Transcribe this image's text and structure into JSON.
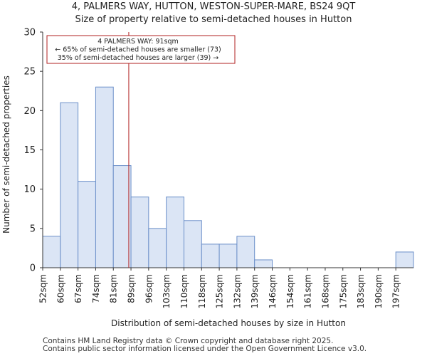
{
  "chart_data": {
    "type": "bar",
    "title": "4, PALMERS WAY, HUTTON, WESTON-SUPER-MARE, BS24 9QT",
    "subtitle": "Size of property relative to semi-detached houses in Hutton",
    "xlabel": "Distribution of semi-detached houses by size in Hutton",
    "ylabel": "Number of semi-detached properties",
    "categories": [
      "52sqm",
      "60sqm",
      "67sqm",
      "74sqm",
      "81sqm",
      "89sqm",
      "96sqm",
      "103sqm",
      "110sqm",
      "118sqm",
      "125sqm",
      "132sqm",
      "139sqm",
      "146sqm",
      "154sqm",
      "161sqm",
      "168sqm",
      "175sqm",
      "183sqm",
      "190sqm",
      "197sqm"
    ],
    "values": [
      4,
      21,
      11,
      23,
      13,
      9,
      5,
      9,
      6,
      3,
      3,
      4,
      1,
      0,
      0,
      0,
      0,
      0,
      0,
      0,
      2
    ],
    "ylim": [
      0,
      30
    ],
    "yticks": [
      0,
      5,
      10,
      15,
      20,
      25,
      30
    ],
    "grid": false,
    "bar_color": "#dbe5f5",
    "bar_edge_color": "#6b8fc9",
    "marker": {
      "value_sqm": 91,
      "color": "#b22222",
      "annotation": [
        "4 PALMERS WAY: 91sqm",
        "← 65% of semi-detached houses are smaller (73)",
        "35% of semi-detached houses are larger (39) →"
      ]
    }
  },
  "footer": {
    "line1": "Contains HM Land Registry data © Crown copyright and database right 2025.",
    "line2": "Contains public sector information licensed under the Open Government Licence v3.0."
  }
}
